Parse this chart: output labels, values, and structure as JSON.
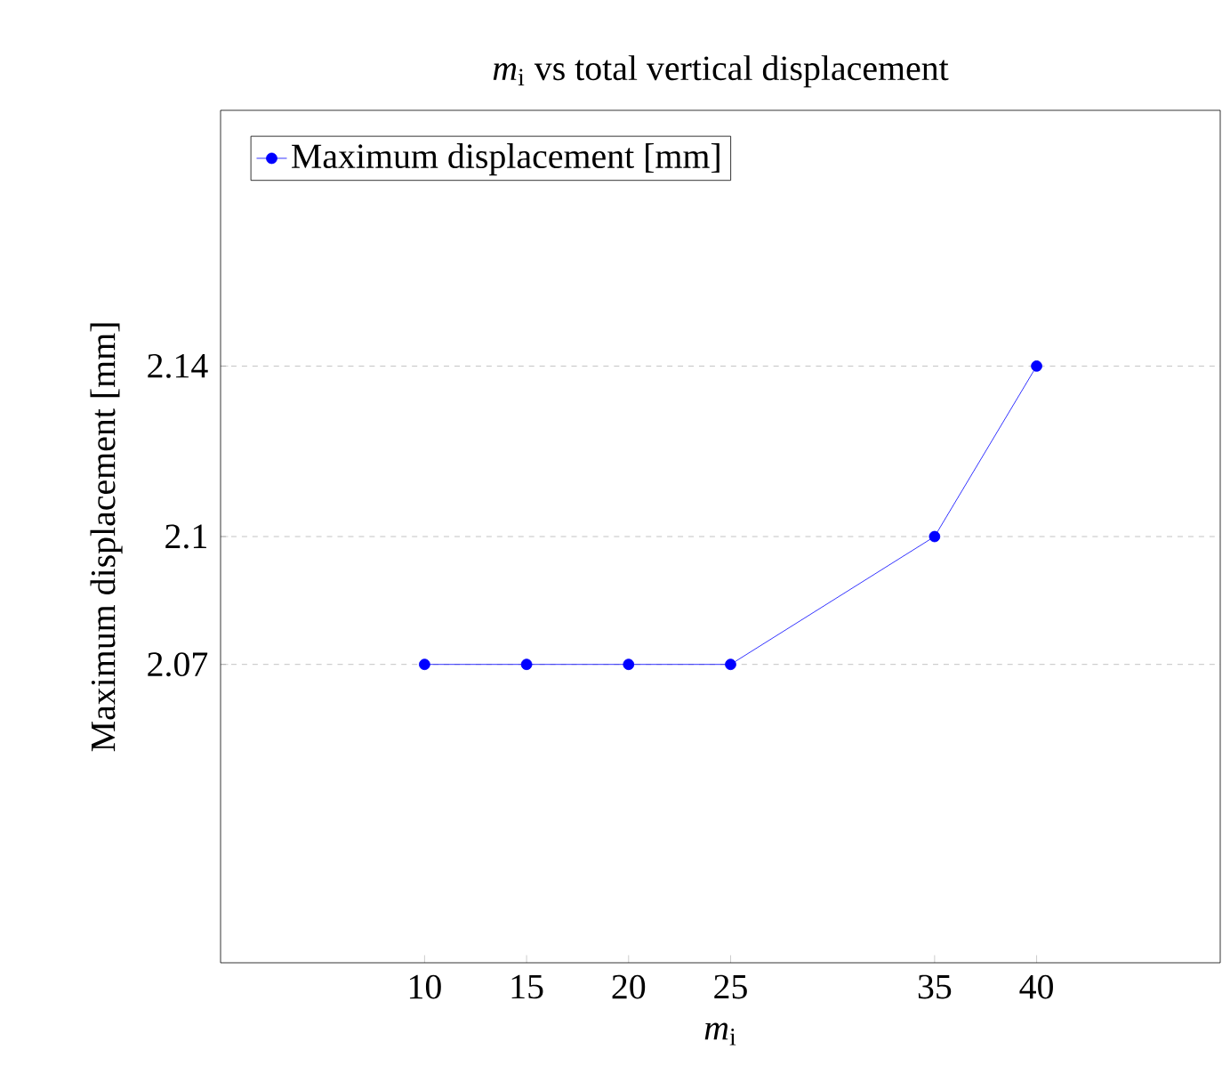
{
  "chart_data": {
    "type": "line",
    "title": "*m*$_{i}$ vs total vertical displacement",
    "xlabel": "*m*$_{i}$",
    "ylabel": "Maximum displacement [mm]",
    "x": [
      10,
      15,
      20,
      25,
      35,
      40
    ],
    "series": [
      {
        "name": "Maximum displacement [mm]",
        "color": "#0000ff",
        "values": [
          2.07,
          2.07,
          2.07,
          2.07,
          2.1,
          2.14
        ]
      }
    ],
    "xlim": [
      0,
      49
    ],
    "ylim": [
      2.0,
      2.2
    ],
    "xticks": [
      10,
      15,
      20,
      25,
      35,
      40
    ],
    "yticks": [
      2.07,
      2.1,
      2.14
    ],
    "grid": "y",
    "legend": "top left",
    "marker": "circle",
    "line_style": "solid"
  }
}
